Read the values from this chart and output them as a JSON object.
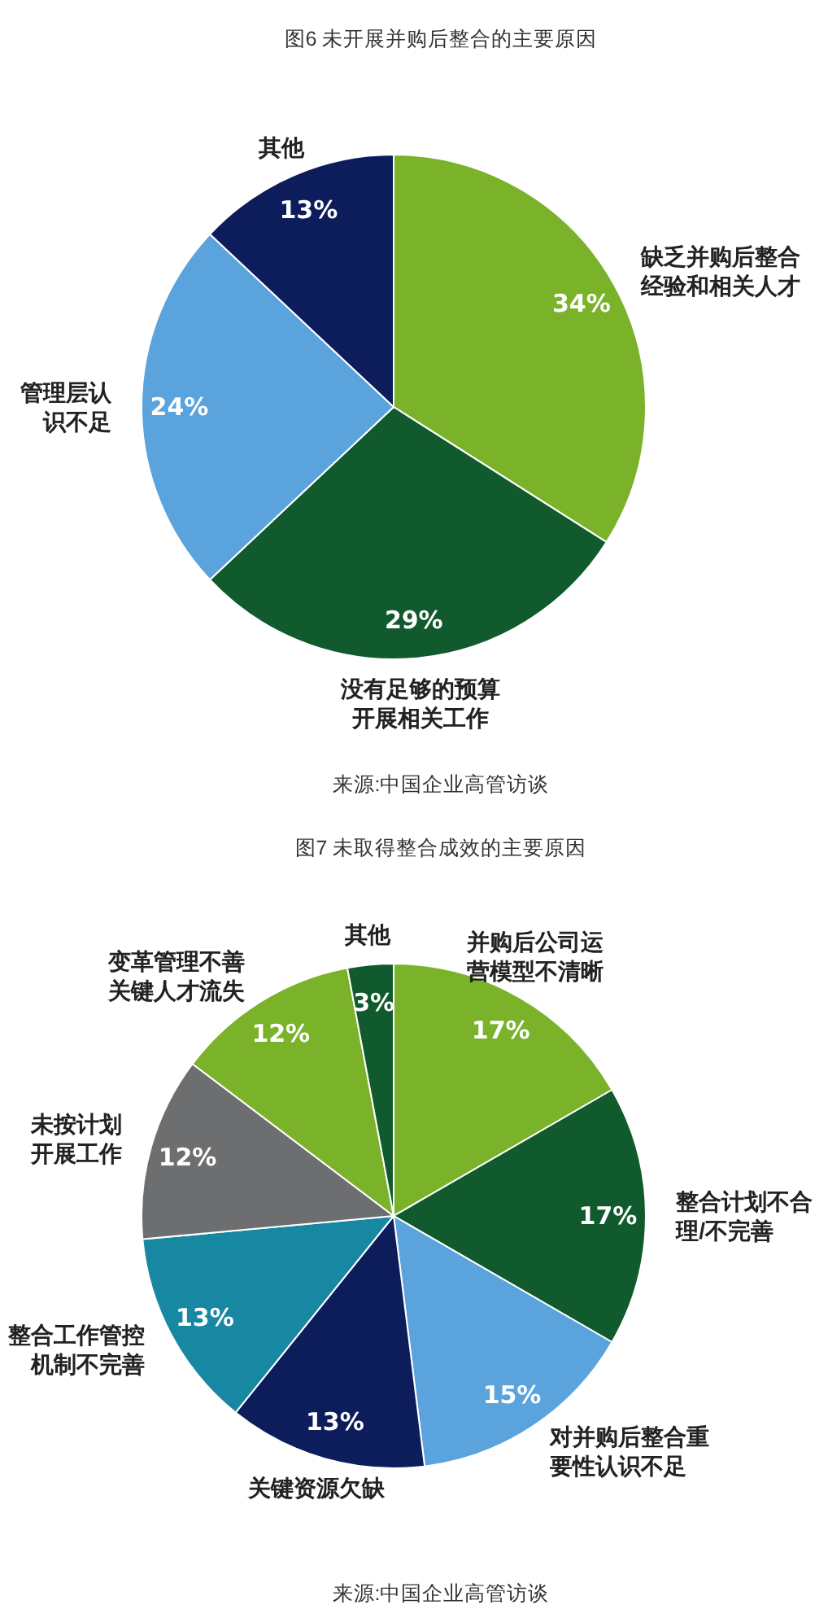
{
  "chart_data": [
    {
      "type": "pie",
      "title": "图6 未开展并购后整合的主要原因",
      "categories": [
        "缺乏并购后整合经验和相关人才",
        "没有足够的预算开展相关工作",
        "管理层认识不足",
        "其他"
      ],
      "values": [
        34,
        29,
        24,
        13
      ],
      "colors": [
        "#7ab22a",
        "#115a2d",
        "#5aa3dc",
        "#0d1d5c"
      ],
      "value_labels": [
        "34%",
        "29%",
        "24%",
        "13%"
      ],
      "annotations": [
        "来源:中国企业高管访谈"
      ]
    },
    {
      "type": "pie",
      "title": "图7 未取得整合成效的主要原因",
      "categories": [
        "并购后公司运营模型不清晰",
        "整合计划不合理/不完善",
        "对并购后整合重要性认识不足",
        "关键资源欠缺",
        "整合工作管控机制不完善",
        "未按计划开展工作",
        "变革管理不善关键人才流失",
        "其他"
      ],
      "values": [
        17,
        17,
        15,
        13,
        13,
        12,
        12,
        3
      ],
      "colors": [
        "#7ab22a",
        "#115a2d",
        "#5aa3dc",
        "#0d1d5c",
        "#1787a2",
        "#6d6e70",
        "#7ab22a",
        "#115a2d"
      ],
      "value_labels": [
        "17%",
        "17%",
        "15%",
        "13%",
        "13%",
        "12%",
        "12%",
        "3%"
      ],
      "annotations": [
        "来源:中国企业高管访谈"
      ]
    }
  ]
}
